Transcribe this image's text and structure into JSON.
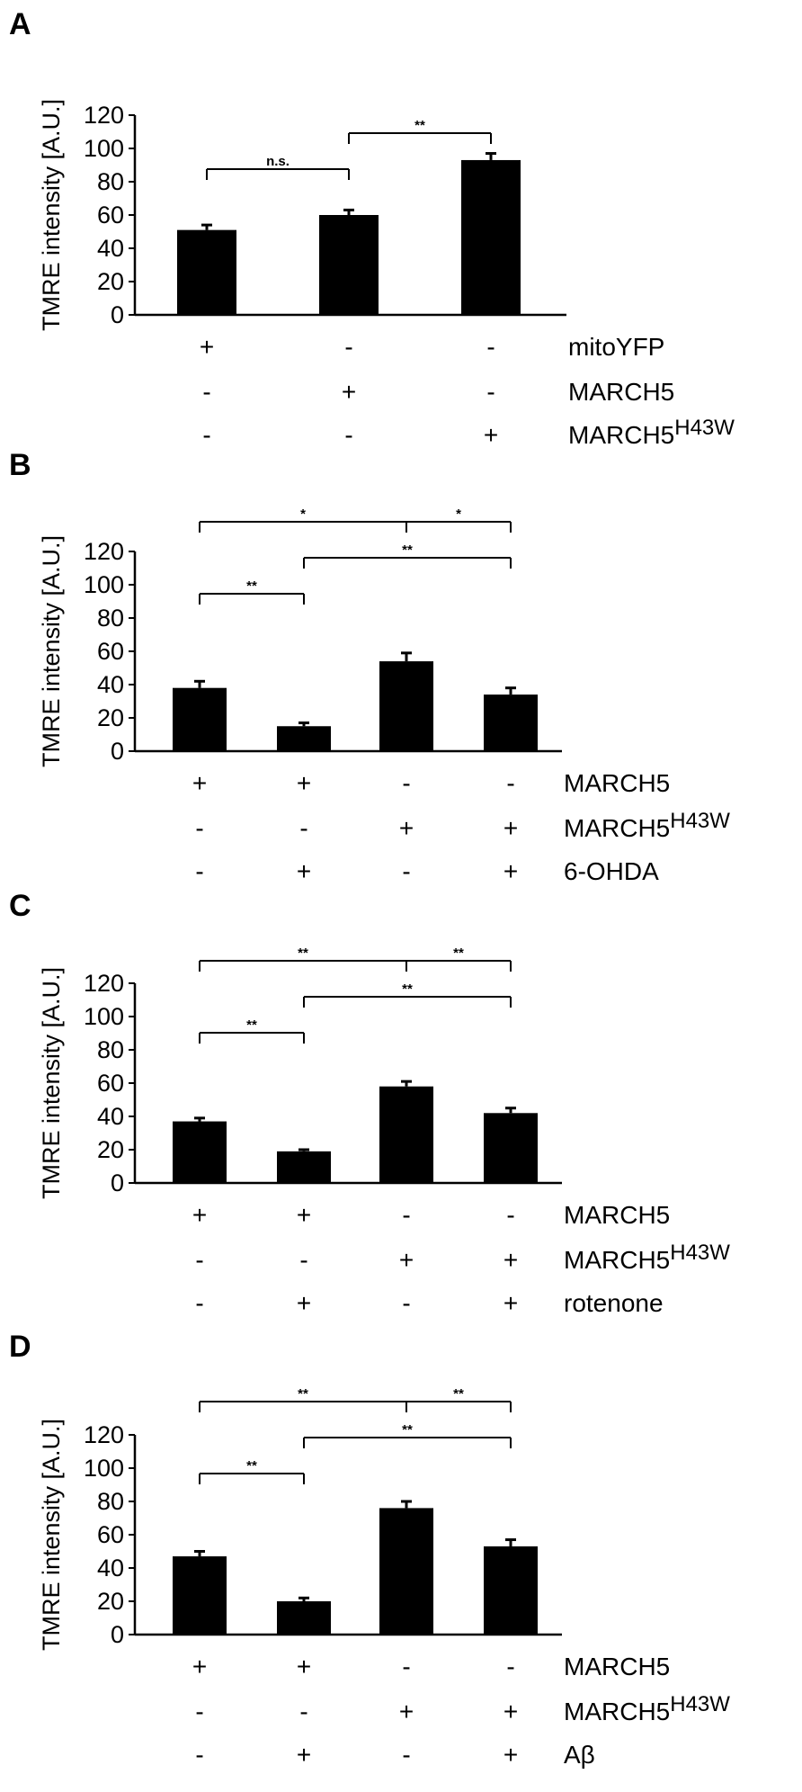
{
  "chart_data": [
    {
      "panel": "A",
      "type": "bar",
      "ylabel": "TMRE intensity [A.U.]",
      "ylim": [
        0,
        120
      ],
      "yticks": [
        0,
        20,
        40,
        60,
        80,
        100,
        120
      ],
      "values": [
        51,
        60,
        93
      ],
      "errors": [
        3,
        3,
        4
      ],
      "conditions": [
        {
          "name": "mitoYFP",
          "signs": [
            "+",
            "-",
            "-"
          ]
        },
        {
          "name": "MARCH5",
          "signs": [
            "-",
            "+",
            "-"
          ]
        },
        {
          "name": "MARCH5",
          "superscript": "H43W",
          "signs": [
            "-",
            "-",
            "+"
          ]
        }
      ],
      "significance": [
        {
          "from": 0,
          "to": 1,
          "label": "n.s.",
          "level": 1
        },
        {
          "from": 1,
          "to": 2,
          "label": "**",
          "level": 2
        }
      ]
    },
    {
      "panel": "B",
      "type": "bar",
      "ylabel": "TMRE intensity [A.U.]",
      "ylim": [
        0,
        120
      ],
      "yticks": [
        0,
        20,
        40,
        60,
        80,
        100,
        120
      ],
      "values": [
        38,
        15,
        54,
        34
      ],
      "errors": [
        4,
        2,
        5,
        4
      ],
      "conditions": [
        {
          "name": "MARCH5",
          "signs": [
            "+",
            "+",
            "-",
            "-"
          ]
        },
        {
          "name": "MARCH5",
          "superscript": "H43W",
          "signs": [
            "-",
            "-",
            "+",
            "+"
          ]
        },
        {
          "name": "6-OHDA",
          "signs": [
            "-",
            "+",
            "-",
            "+"
          ]
        }
      ],
      "significance": [
        {
          "from": 0,
          "to": 2,
          "label": "*",
          "level": 3
        },
        {
          "from": 2,
          "to": 3,
          "label": "*",
          "level": 3
        },
        {
          "from": 1,
          "to": 3,
          "label": "**",
          "level": 2
        },
        {
          "from": 0,
          "to": 1,
          "label": "**",
          "level": 1
        }
      ]
    },
    {
      "panel": "C",
      "type": "bar",
      "ylabel": "TMRE intensity [A.U.]",
      "ylim": [
        0,
        120
      ],
      "yticks": [
        0,
        20,
        40,
        60,
        80,
        100,
        120
      ],
      "values": [
        37,
        19,
        58,
        42
      ],
      "errors": [
        2,
        1,
        3,
        3
      ],
      "conditions": [
        {
          "name": "MARCH5",
          "signs": [
            "+",
            "+",
            "-",
            "-"
          ]
        },
        {
          "name": "MARCH5",
          "superscript": "H43W",
          "signs": [
            "-",
            "-",
            "+",
            "+"
          ]
        },
        {
          "name": "rotenone",
          "signs": [
            "-",
            "+",
            "-",
            "+"
          ]
        }
      ],
      "significance": [
        {
          "from": 0,
          "to": 2,
          "label": "**",
          "level": 3
        },
        {
          "from": 2,
          "to": 3,
          "label": "**",
          "level": 3
        },
        {
          "from": 1,
          "to": 3,
          "label": "**",
          "level": 2
        },
        {
          "from": 0,
          "to": 1,
          "label": "**",
          "level": 1
        }
      ]
    },
    {
      "panel": "D",
      "type": "bar",
      "ylabel": "TMRE intensity [A.U.]",
      "ylim": [
        0,
        120
      ],
      "yticks": [
        0,
        20,
        40,
        60,
        80,
        100,
        120
      ],
      "values": [
        47,
        20,
        76,
        53
      ],
      "errors": [
        3,
        2,
        4,
        4
      ],
      "conditions": [
        {
          "name": "MARCH5",
          "signs": [
            "+",
            "+",
            "-",
            "-"
          ]
        },
        {
          "name": "MARCH5",
          "superscript": "H43W",
          "signs": [
            "-",
            "-",
            "+",
            "+"
          ]
        },
        {
          "name": "Aβ",
          "signs": [
            "-",
            "+",
            "-",
            "+"
          ]
        }
      ],
      "significance": [
        {
          "from": 0,
          "to": 2,
          "label": "**",
          "level": 3
        },
        {
          "from": 2,
          "to": 3,
          "label": "**",
          "level": 3
        },
        {
          "from": 1,
          "to": 3,
          "label": "**",
          "level": 2
        },
        {
          "from": 0,
          "to": 1,
          "label": "**",
          "level": 1
        }
      ]
    }
  ]
}
